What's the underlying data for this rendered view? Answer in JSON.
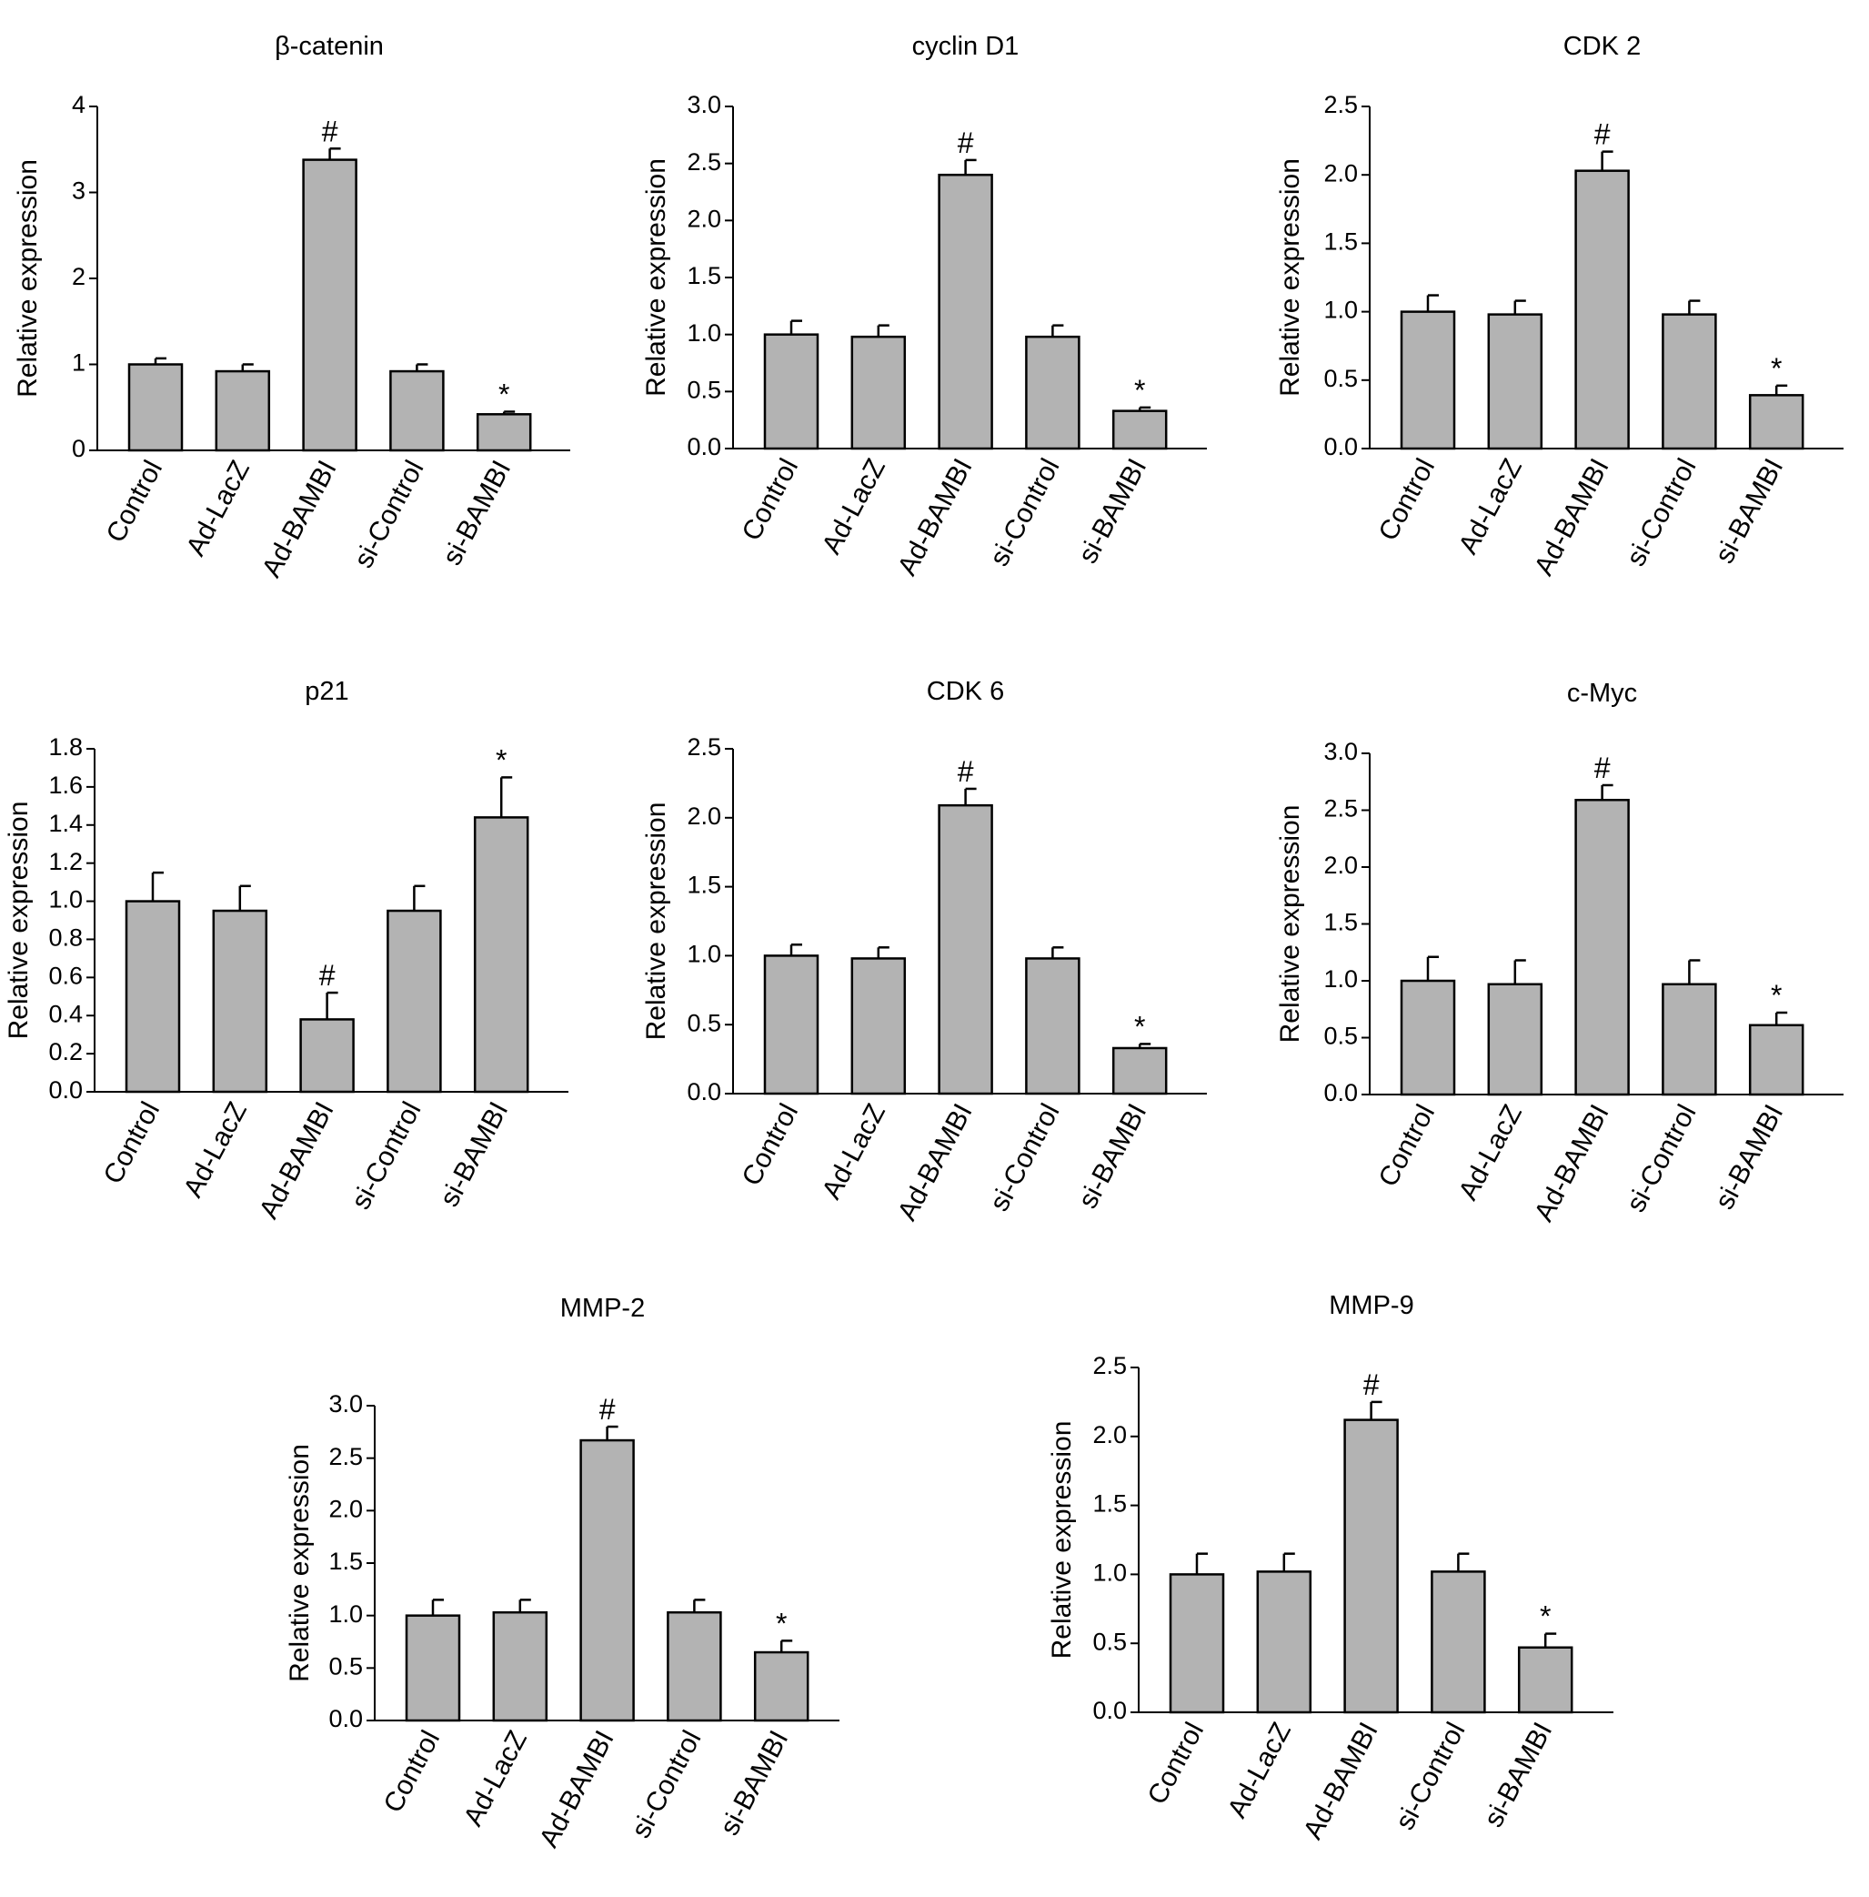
{
  "chart_data": [
    {
      "type": "bar",
      "title": "β-catenin",
      "ylabel": "Relative expression",
      "categories": [
        "Control",
        "Ad-LacZ",
        "Ad-BAMBI",
        "si-Control",
        "si-BAMBI"
      ],
      "values": [
        1.0,
        0.92,
        3.38,
        0.92,
        0.42
      ],
      "errors": [
        0.07,
        0.08,
        0.13,
        0.08,
        0.03
      ],
      "annotations": [
        "",
        "",
        "#",
        "",
        "*"
      ],
      "ylim": [
        0,
        4
      ],
      "yticks": [
        "0",
        "1",
        "2",
        "3",
        "4"
      ],
      "bar_color": "#b3b3b3"
    },
    {
      "type": "bar",
      "title": "cyclin D1",
      "ylabel": "Relative expression",
      "categories": [
        "Control",
        "Ad-LacZ",
        "Ad-BAMBI",
        "si-Control",
        "si-BAMBI"
      ],
      "values": [
        1.0,
        0.98,
        2.4,
        0.98,
        0.33
      ],
      "errors": [
        0.12,
        0.1,
        0.13,
        0.1,
        0.03
      ],
      "annotations": [
        "",
        "",
        "#",
        "",
        "*"
      ],
      "ylim": [
        0,
        3
      ],
      "yticks": [
        "0.0",
        "0.5",
        "1.0",
        "1.5",
        "2.0",
        "2.5",
        "3.0"
      ],
      "bar_color": "#b3b3b3"
    },
    {
      "type": "bar",
      "title": "CDK 2",
      "ylabel": "Relative expression",
      "categories": [
        "Control",
        "Ad-LacZ",
        "Ad-BAMBI",
        "si-Control",
        "si-BAMBI"
      ],
      "values": [
        1.0,
        0.98,
        2.03,
        0.98,
        0.39
      ],
      "errors": [
        0.12,
        0.1,
        0.14,
        0.1,
        0.07
      ],
      "annotations": [
        "",
        "",
        "#",
        "",
        "*"
      ],
      "ylim": [
        0,
        2.5
      ],
      "yticks": [
        "0.0",
        "0.5",
        "1.0",
        "1.5",
        "2.0",
        "2.5"
      ],
      "bar_color": "#b3b3b3"
    },
    {
      "type": "bar",
      "title": "p21",
      "ylabel": "Relative expression",
      "categories": [
        "Control",
        "Ad-LacZ",
        "Ad-BAMBI",
        "si-Control",
        "si-BAMBI"
      ],
      "values": [
        1.0,
        0.95,
        0.38,
        0.95,
        1.44
      ],
      "errors": [
        0.15,
        0.13,
        0.14,
        0.13,
        0.21
      ],
      "annotations": [
        "",
        "",
        "#",
        "",
        "*"
      ],
      "ylim": [
        0,
        1.8
      ],
      "yticks": [
        "0.0",
        "0.2",
        "0.4",
        "0.6",
        "0.8",
        "1.0",
        "1.2",
        "1.4",
        "1.6",
        "1.8"
      ],
      "bar_color": "#b3b3b3"
    },
    {
      "type": "bar",
      "title": "CDK 6",
      "ylabel": "Relative expression",
      "categories": [
        "Control",
        "Ad-LacZ",
        "Ad-BAMBI",
        "si-Control",
        "si-BAMBI"
      ],
      "values": [
        1.0,
        0.98,
        2.09,
        0.98,
        0.33
      ],
      "errors": [
        0.08,
        0.08,
        0.12,
        0.08,
        0.03
      ],
      "annotations": [
        "",
        "",
        "#",
        "",
        "*"
      ],
      "ylim": [
        0,
        2.5
      ],
      "yticks": [
        "0.0",
        "0.5",
        "1.0",
        "1.5",
        "2.0",
        "2.5"
      ],
      "bar_color": "#b3b3b3"
    },
    {
      "type": "bar",
      "title": "c-Myc",
      "ylabel": "Relative expression",
      "categories": [
        "Control",
        "Ad-LacZ",
        "Ad-BAMBI",
        "si-Control",
        "si-BAMBI"
      ],
      "values": [
        1.0,
        0.97,
        2.59,
        0.97,
        0.61
      ],
      "errors": [
        0.21,
        0.21,
        0.13,
        0.21,
        0.11
      ],
      "annotations": [
        "",
        "",
        "#",
        "",
        "*"
      ],
      "ylim": [
        0,
        3
      ],
      "yticks": [
        "0.0",
        "0.5",
        "1.0",
        "1.5",
        "2.0",
        "2.5",
        "3.0"
      ],
      "bar_color": "#b3b3b3"
    },
    {
      "type": "bar",
      "title": "MMP-2",
      "ylabel": "Relative expression",
      "categories": [
        "Control",
        "Ad-LacZ",
        "Ad-BAMBI",
        "si-Control",
        "si-BAMBI"
      ],
      "values": [
        1.0,
        1.03,
        2.67,
        1.03,
        0.65
      ],
      "errors": [
        0.15,
        0.12,
        0.13,
        0.12,
        0.11
      ],
      "annotations": [
        "",
        "",
        "#",
        "",
        "*"
      ],
      "ylim": [
        0,
        3
      ],
      "yticks": [
        "0.0",
        "0.5",
        "1.0",
        "1.5",
        "2.0",
        "2.5",
        "3.0"
      ],
      "bar_color": "#b3b3b3"
    },
    {
      "type": "bar",
      "title": "MMP-9",
      "ylabel": "Relative expression",
      "categories": [
        "Control",
        "Ad-LacZ",
        "Ad-BAMBI",
        "si-Control",
        "si-BAMBI"
      ],
      "values": [
        1.0,
        1.02,
        2.12,
        1.02,
        0.47
      ],
      "errors": [
        0.15,
        0.13,
        0.13,
        0.13,
        0.1
      ],
      "annotations": [
        "",
        "",
        "#",
        "",
        "*"
      ],
      "ylim": [
        0,
        2.5
      ],
      "yticks": [
        "0.0",
        "0.5",
        "1.0",
        "1.5",
        "2.0",
        "2.5"
      ],
      "bar_color": "#b3b3b3"
    }
  ]
}
